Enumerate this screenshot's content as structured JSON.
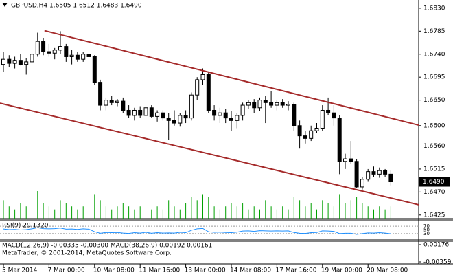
{
  "chart_data": {
    "type": "candlestick",
    "title": "GBPUSD,H4  1.6505 1.6512 1.6483 1.6490",
    "ohlc": [
      [
        1.672,
        1.6745,
        1.6705,
        1.673
      ],
      [
        1.673,
        1.6738,
        1.6715,
        1.6722
      ],
      [
        1.6722,
        1.6735,
        1.6712,
        1.6728
      ],
      [
        1.6728,
        1.674,
        1.6718,
        1.672
      ],
      [
        1.672,
        1.6732,
        1.67,
        1.6725
      ],
      [
        1.6725,
        1.6745,
        1.6705,
        1.674
      ],
      [
        1.674,
        1.6782,
        1.6735,
        1.6765
      ],
      [
        1.6765,
        1.6772,
        1.6738,
        1.6745
      ],
      [
        1.6745,
        1.676,
        1.6735,
        1.6742
      ],
      [
        1.6742,
        1.6752,
        1.673,
        1.6748
      ],
      [
        1.6748,
        1.6785,
        1.674,
        1.6755
      ],
      [
        1.6755,
        1.676,
        1.6725,
        1.6735
      ],
      [
        1.6735,
        1.6748,
        1.672,
        1.6738
      ],
      [
        1.6738,
        1.6745,
        1.6725,
        1.673
      ],
      [
        1.673,
        1.6745,
        1.6725,
        1.674
      ],
      [
        1.674,
        1.6745,
        1.6728,
        1.6735
      ],
      [
        1.6735,
        1.6738,
        1.668,
        1.6685
      ],
      [
        1.6685,
        1.669,
        1.663,
        1.664
      ],
      [
        1.664,
        1.6655,
        1.663,
        1.665
      ],
      [
        1.665,
        1.6658,
        1.664,
        1.6645
      ],
      [
        1.6645,
        1.6652,
        1.6638,
        1.6648
      ],
      [
        1.6648,
        1.6655,
        1.6625,
        1.663
      ],
      [
        1.663,
        1.664,
        1.6615,
        1.662
      ],
      [
        1.662,
        1.6635,
        1.661,
        1.663
      ],
      [
        1.663,
        1.6638,
        1.6615,
        1.662
      ],
      [
        1.662,
        1.664,
        1.6612,
        1.6635
      ],
      [
        1.6635,
        1.664,
        1.6615,
        1.6618
      ],
      [
        1.6618,
        1.663,
        1.6608,
        1.6625
      ],
      [
        1.6625,
        1.663,
        1.661,
        1.6615
      ],
      [
        1.6615,
        1.6625,
        1.6572,
        1.661
      ],
      [
        1.661,
        1.663,
        1.66,
        1.6605
      ],
      [
        1.6605,
        1.6625,
        1.6598,
        1.662
      ],
      [
        1.662,
        1.663,
        1.6605,
        1.6615
      ],
      [
        1.6615,
        1.6665,
        1.661,
        1.666
      ],
      [
        1.666,
        1.6695,
        1.665,
        1.669
      ],
      [
        1.669,
        1.6712,
        1.668,
        1.67
      ],
      [
        1.67,
        1.6705,
        1.6625,
        1.663
      ],
      [
        1.663,
        1.664,
        1.661,
        1.662
      ],
      [
        1.662,
        1.6635,
        1.6605,
        1.6625
      ],
      [
        1.6625,
        1.6632,
        1.6605,
        1.6615
      ],
      [
        1.6615,
        1.6628,
        1.659,
        1.661
      ],
      [
        1.661,
        1.6625,
        1.6595,
        1.662
      ],
      [
        1.662,
        1.6645,
        1.661,
        1.664
      ],
      [
        1.664,
        1.665,
        1.6632,
        1.6645
      ],
      [
        1.6645,
        1.6652,
        1.6625,
        1.6635
      ],
      [
        1.6635,
        1.6655,
        1.6628,
        1.665
      ],
      [
        1.665,
        1.6658,
        1.6605,
        1.6645
      ],
      [
        1.6645,
        1.6668,
        1.6635,
        1.664
      ],
      [
        1.664,
        1.665,
        1.663,
        1.6645
      ],
      [
        1.6645,
        1.6652,
        1.6635,
        1.664
      ],
      [
        1.664,
        1.6648,
        1.663,
        1.6642
      ],
      [
        1.6642,
        1.6645,
        1.659,
        1.66
      ],
      [
        1.66,
        1.661,
        1.6555,
        1.658
      ],
      [
        1.658,
        1.659,
        1.6565,
        1.6575
      ],
      [
        1.6575,
        1.66,
        1.657,
        1.659
      ],
      [
        1.659,
        1.6605,
        1.6585,
        1.6595
      ],
      [
        1.6595,
        1.664,
        1.659,
        1.663
      ],
      [
        1.663,
        1.6655,
        1.662,
        1.6625
      ],
      [
        1.6625,
        1.664,
        1.66,
        1.6615
      ],
      [
        1.6615,
        1.662,
        1.6505,
        1.653
      ],
      [
        1.653,
        1.6545,
        1.6515,
        1.6535
      ],
      [
        1.6535,
        1.657,
        1.6525,
        1.653
      ],
      [
        1.653,
        1.6535,
        1.6478,
        1.648
      ],
      [
        1.648,
        1.65,
        1.6475,
        1.6495
      ],
      [
        1.6495,
        1.6515,
        1.649,
        1.651
      ],
      [
        1.651,
        1.652,
        1.65,
        1.6505
      ],
      [
        1.6505,
        1.6518,
        1.6498,
        1.6512
      ],
      [
        1.6512,
        1.6515,
        1.65,
        1.6505
      ],
      [
        1.6505,
        1.6512,
        1.6483,
        1.649
      ]
    ],
    "volume": [
      30,
      20,
      15,
      25,
      20,
      35,
      45,
      25,
      20,
      15,
      30,
      25,
      20,
      15,
      20,
      15,
      40,
      30,
      20,
      15,
      20,
      25,
      20,
      15,
      20,
      25,
      15,
      20,
      15,
      30,
      20,
      15,
      25,
      35,
      30,
      40,
      35,
      20,
      15,
      20,
      25,
      20,
      25,
      15,
      20,
      15,
      30,
      20,
      15,
      20,
      15,
      35,
      30,
      20,
      25,
      15,
      30,
      25,
      20,
      40,
      25,
      30,
      35,
      25,
      20,
      15,
      20,
      15,
      20
    ],
    "volume_color": "#00a000",
    "ylim": [
      1.6418,
      1.6846
    ],
    "yticks": [
      {
        "value": 1.683,
        "label": "1.6830"
      },
      {
        "value": 1.6785,
        "label": "1.6785"
      },
      {
        "value": 1.674,
        "label": "1.6740"
      },
      {
        "value": 1.6695,
        "label": "1.6695"
      },
      {
        "value": 1.665,
        "label": "1.6650"
      },
      {
        "value": 1.66,
        "label": "1.6600"
      },
      {
        "value": 1.656,
        "label": "1.6560"
      },
      {
        "value": 1.6515,
        "label": "1.6515"
      },
      {
        "value": 1.647,
        "label": "1.6470"
      },
      {
        "value": 1.6425,
        "label": "1.6425"
      }
    ],
    "last_price": {
      "value": 1.649,
      "label": "1.6490"
    },
    "xticks": [
      {
        "value": 0,
        "label": "5 Mar 2014"
      },
      {
        "value": 8,
        "label": "7 Mar 00:00"
      },
      {
        "value": 16,
        "label": "10 Mar 08:00"
      },
      {
        "value": 24,
        "label": "11 Mar 16:00"
      },
      {
        "value": 32,
        "label": "13 Mar 00:00"
      },
      {
        "value": 40,
        "label": "14 Mar 08:00"
      },
      {
        "value": 48,
        "label": "17 Mar 16:00"
      },
      {
        "value": 56,
        "label": "19 Mar 00:00"
      },
      {
        "value": 64,
        "label": "20 Mar 08:00"
      }
    ],
    "trendlines": [
      {
        "color": "#a52a2a",
        "x": [
          7.2,
          72.9
        ],
        "y": [
          1.6786,
          1.6601
        ]
      },
      {
        "color": "#a52a2a",
        "x": [
          -0.6,
          72.9
        ],
        "y": [
          1.6644,
          1.6445
        ]
      }
    ],
    "rsi": {
      "label": "RSI(9) 29.1320",
      "color": "#1e90ff",
      "values": [
        55,
        52,
        53,
        50,
        52,
        56,
        62,
        57,
        56,
        57,
        60,
        54,
        55,
        53,
        56,
        54,
        40,
        32,
        36,
        35,
        36,
        33,
        31,
        35,
        33,
        37,
        32,
        35,
        33,
        34,
        33,
        37,
        35,
        48,
        56,
        58,
        40,
        37,
        38,
        36,
        35,
        38,
        44,
        45,
        42,
        46,
        45,
        44,
        45,
        44,
        45,
        36,
        32,
        31,
        35,
        36,
        45,
        44,
        42,
        30,
        32,
        32,
        26,
        30,
        34,
        33,
        35,
        33,
        29.132
      ],
      "ylim": [
        0,
        100
      ],
      "yticks": [
        70,
        50,
        30
      ]
    },
    "macd": {
      "label": "MACD(12,26,9) -0.00335 -0.00300 MACD(38,26,9) 0.00192 0.00161",
      "ylim": [
        -0.00359,
        0.00176
      ],
      "yticks": [
        0.00176,
        -0.00359
      ]
    },
    "footer": "MetaTrader, © 2001-2014, MetaQuotes Software Corp."
  }
}
